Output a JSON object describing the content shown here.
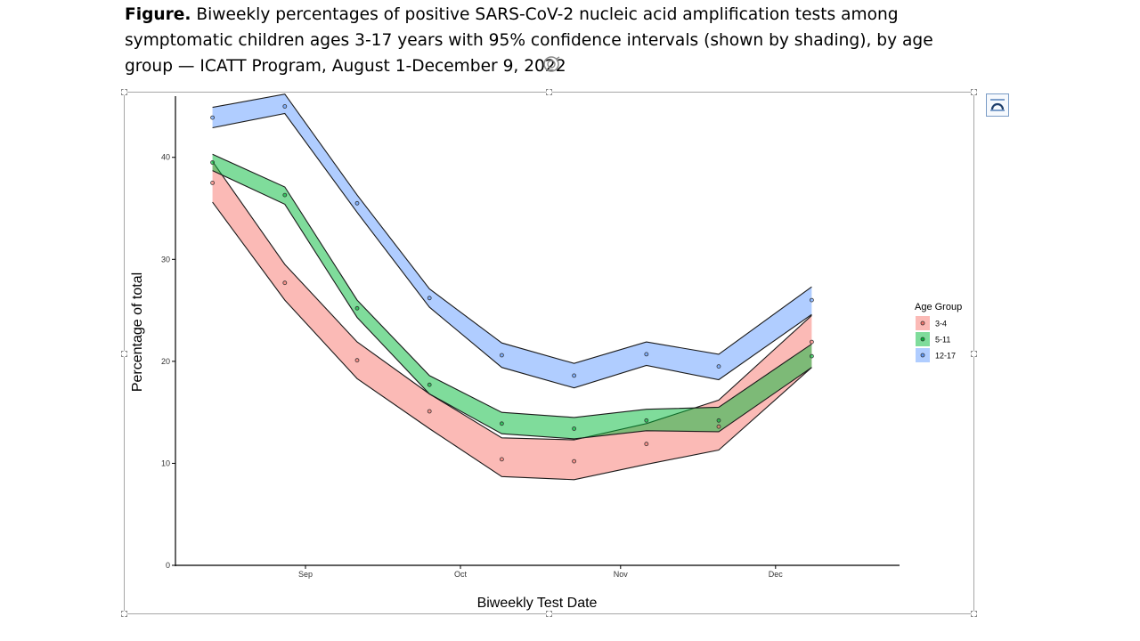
{
  "caption": {
    "lead": "Figure.",
    "text": " Biweekly percentages of positive SARS-CoV-2 nucleic acid amplification tests among symptomatic children ages 3-17 years with 95% confidence intervals (shown by shading), by age group — ICATT Program, August 1-December 9, 2022"
  },
  "chart_data": {
    "type": "area",
    "xlabel": "Biweekly Test Date",
    "ylabel": "Percentage of total",
    "x_ticks": [
      "Sep",
      "Oct",
      "Nov",
      "Dec"
    ],
    "x_tick_dates": [
      "2022-09-01",
      "2022-10-01",
      "2022-11-01",
      "2022-12-01"
    ],
    "xlim": [
      "2022-08-07",
      "2022-12-25"
    ],
    "ylim": [
      0,
      46
    ],
    "y_ticks": [
      0,
      10,
      20,
      30,
      40
    ],
    "grid": false,
    "legend": {
      "title": "Age Group",
      "placement": "right"
    },
    "x": [
      "2022-08-14",
      "2022-08-28",
      "2022-09-11",
      "2022-09-25",
      "2022-10-09",
      "2022-10-23",
      "2022-11-06",
      "2022-11-20",
      "2022-12-08"
    ],
    "series": [
      {
        "name": "3-4",
        "fill": "#f8766d",
        "values": [
          37.5,
          27.7,
          20.1,
          15.1,
          10.4,
          10.2,
          11.9,
          13.6,
          21.9
        ],
        "lower": [
          35.6,
          26.0,
          18.3,
          13.4,
          8.7,
          8.4,
          9.9,
          11.3,
          19.4
        ],
        "upper": [
          39.6,
          29.5,
          21.9,
          16.8,
          12.5,
          12.3,
          13.9,
          16.2,
          24.5
        ]
      },
      {
        "name": "5-11",
        "fill": "#00ba38",
        "values": [
          39.5,
          36.3,
          25.2,
          17.7,
          13.9,
          13.4,
          14.2,
          14.2,
          20.5
        ],
        "lower": [
          38.7,
          35.4,
          24.3,
          16.8,
          12.9,
          12.4,
          13.2,
          13.1,
          19.4
        ],
        "upper": [
          40.3,
          37.1,
          26.0,
          18.6,
          15.0,
          14.5,
          15.3,
          15.5,
          21.7
        ]
      },
      {
        "name": "12-17",
        "fill": "#619cff",
        "values": [
          43.9,
          45.0,
          35.5,
          26.2,
          20.6,
          18.6,
          20.7,
          19.5,
          26.0
        ],
        "lower": [
          42.9,
          44.3,
          34.6,
          25.3,
          19.4,
          17.4,
          19.6,
          18.2,
          24.6
        ],
        "upper": [
          44.9,
          46.2,
          36.3,
          27.1,
          21.8,
          19.8,
          21.9,
          20.7,
          27.3
        ]
      }
    ]
  }
}
